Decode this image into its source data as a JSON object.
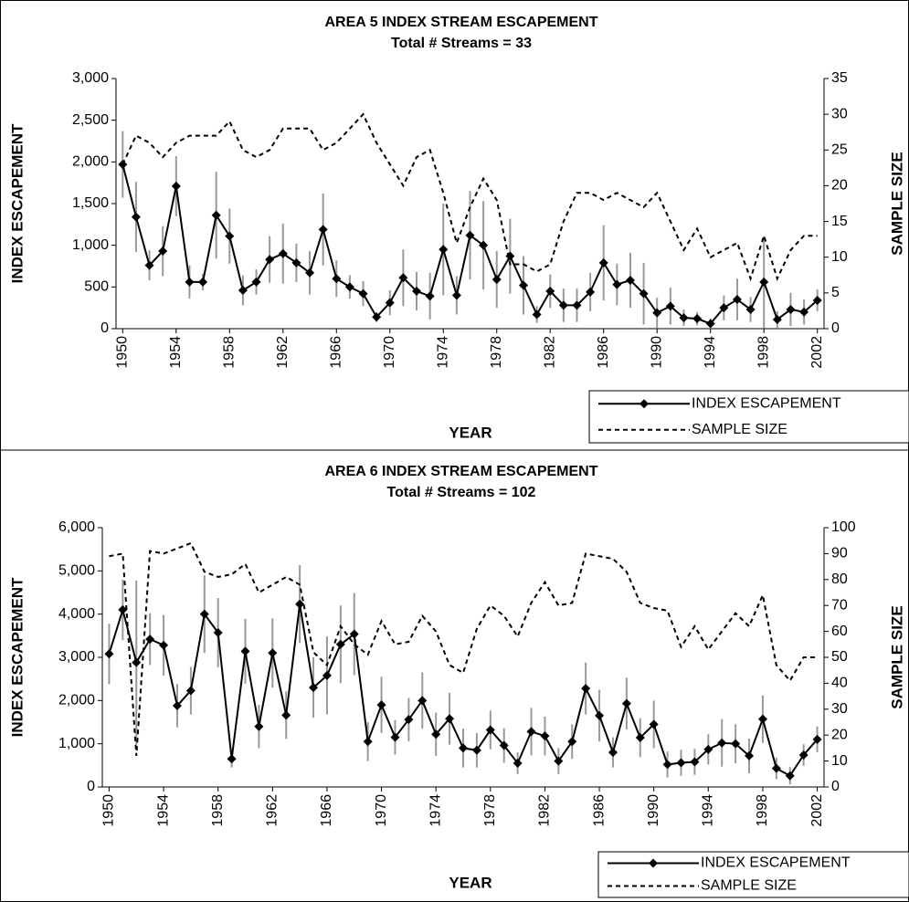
{
  "chart_data": [
    {
      "type": "line",
      "title": "AREA 5 INDEX STREAM ESCAPEMENT",
      "subtitle": "Total # Streams = 33",
      "xlabel": "YEAR",
      "ylabel": "INDEX ESCAPEMENT",
      "y2label": "SAMPLE SIZE",
      "x": [
        1950,
        1951,
        1952,
        1953,
        1954,
        1955,
        1956,
        1957,
        1958,
        1959,
        1960,
        1961,
        1962,
        1963,
        1964,
        1965,
        1966,
        1967,
        1968,
        1969,
        1970,
        1971,
        1972,
        1973,
        1974,
        1975,
        1976,
        1977,
        1978,
        1979,
        1980,
        1981,
        1982,
        1983,
        1984,
        1985,
        1986,
        1987,
        1988,
        1989,
        1990,
        1991,
        1992,
        1993,
        1994,
        1995,
        1996,
        1997,
        1998,
        1999,
        2000,
        2001,
        2002
      ],
      "xlim": [
        1949.5,
        2002.5
      ],
      "xticks": [
        1950,
        1954,
        1958,
        1962,
        1966,
        1970,
        1974,
        1978,
        1982,
        1986,
        1990,
        1994,
        1998,
        2002
      ],
      "ylim": [
        0,
        3000
      ],
      "yticks": [
        0,
        500,
        {
          "value": 1000,
          "label": "1,000"
        },
        {
          "value": 1500,
          "label": "1,500"
        },
        {
          "value": 2000,
          "label": "2,000"
        },
        {
          "value": 2500,
          "label": "2,500"
        },
        {
          "value": 3000,
          "label": "3,000"
        }
      ],
      "y2lim": [
        0,
        35
      ],
      "y2ticks": [
        0,
        5,
        10,
        15,
        20,
        25,
        30,
        35
      ],
      "legend": "lower right",
      "series": [
        {
          "name": "INDEX ESCAPEMENT",
          "color": "#000000",
          "error_color": "#999999",
          "values": [
            1970,
            1340,
            760,
            930,
            1710,
            560,
            560,
            1360,
            1110,
            460,
            560,
            830,
            900,
            790,
            670,
            1190,
            600,
            500,
            420,
            140,
            310,
            610,
            450,
            390,
            950,
            400,
            1120,
            1000,
            590,
            870,
            520,
            170,
            450,
            280,
            280,
            440,
            790,
            530,
            580,
            420,
            190,
            270,
            130,
            120,
            60,
            250,
            350,
            230,
            560,
            110,
            230,
            200,
            340
          ],
          "errors": [
            400,
            420,
            180,
            300,
            360,
            200,
            100,
            520,
            330,
            180,
            150,
            280,
            360,
            230,
            260,
            430,
            220,
            140,
            150,
            60,
            150,
            340,
            230,
            280,
            550,
            230,
            530,
            530,
            340,
            450,
            350,
            100,
            200,
            200,
            200,
            230,
            450,
            250,
            330,
            370,
            180,
            220,
            100,
            80,
            60,
            150,
            250,
            150,
            550,
            100,
            200,
            150,
            130
          ]
        },
        {
          "name": "SAMPLE SIZE",
          "color": "#000000",
          "dash": true,
          "axis": "y2",
          "values": [
            23,
            27,
            26,
            24,
            26,
            27,
            27,
            27,
            29,
            25,
            24,
            25,
            28,
            28,
            28,
            25,
            26,
            28,
            30,
            26,
            23,
            20,
            24,
            25,
            19,
            12,
            17,
            21,
            18,
            9,
            9,
            8,
            9,
            15,
            19,
            19,
            18,
            19,
            18,
            17,
            19,
            15,
            11,
            14,
            10,
            11,
            12,
            7,
            13,
            7,
            11,
            13,
            13
          ]
        }
      ]
    },
    {
      "type": "line",
      "title": "AREA 6 INDEX STREAM ESCAPEMENT",
      "subtitle": "Total # Streams = 102",
      "xlabel": "YEAR",
      "ylabel": "INDEX ESCAPEMENT",
      "y2label": "SAMPLE SIZE",
      "x": [
        1950,
        1951,
        1952,
        1953,
        1954,
        1955,
        1956,
        1957,
        1958,
        1959,
        1960,
        1961,
        1962,
        1963,
        1964,
        1965,
        1966,
        1967,
        1968,
        1969,
        1970,
        1971,
        1972,
        1973,
        1974,
        1975,
        1976,
        1977,
        1978,
        1979,
        1980,
        1981,
        1982,
        1983,
        1984,
        1985,
        1986,
        1987,
        1988,
        1989,
        1990,
        1991,
        1992,
        1993,
        1994,
        1995,
        1996,
        1997,
        1998,
        1999,
        2000,
        2001,
        2002
      ],
      "xlim": [
        1949.5,
        2002.5
      ],
      "xticks": [
        1950,
        1954,
        1958,
        1962,
        1966,
        1970,
        1974,
        1978,
        1982,
        1986,
        1990,
        1994,
        1998,
        2002
      ],
      "ylim": [
        0,
        6000
      ],
      "yticks": [
        0,
        {
          "value": 1000,
          "label": "1,000"
        },
        {
          "value": 2000,
          "label": "2,000"
        },
        {
          "value": 3000,
          "label": "3,000"
        },
        {
          "value": 4000,
          "label": "4,000"
        },
        {
          "value": 5000,
          "label": "5,000"
        },
        {
          "value": 6000,
          "label": "6,000"
        }
      ],
      "y2lim": [
        0,
        100
      ],
      "y2ticks": [
        0,
        10,
        20,
        30,
        40,
        50,
        60,
        70,
        80,
        90,
        100
      ],
      "legend": "lower right",
      "series": [
        {
          "name": "INDEX ESCAPEMENT",
          "color": "#000000",
          "error_color": "#999999",
          "values": [
            3080,
            4100,
            2880,
            3420,
            3280,
            1880,
            2230,
            4000,
            3570,
            650,
            3140,
            1400,
            3100,
            1660,
            4230,
            2300,
            2580,
            3300,
            3540,
            1050,
            1900,
            1150,
            1560,
            2000,
            1220,
            1580,
            900,
            850,
            1320,
            960,
            550,
            1280,
            1180,
            600,
            1050,
            2280,
            1650,
            800,
            1930,
            1140,
            1450,
            520,
            560,
            580,
            870,
            1020,
            1000,
            720,
            1570,
            430,
            260,
            740,
            1100
          ],
          "errors": [
            700,
            700,
            1900,
            600,
            700,
            500,
            550,
            900,
            800,
            200,
            750,
            500,
            800,
            550,
            900,
            700,
            900,
            900,
            950,
            450,
            650,
            400,
            500,
            650,
            500,
            600,
            450,
            400,
            450,
            400,
            250,
            550,
            450,
            300,
            400,
            600,
            600,
            350,
            600,
            450,
            550,
            300,
            300,
            300,
            350,
            550,
            450,
            400,
            550,
            250,
            200,
            250,
            300
          ]
        },
        {
          "name": "SAMPLE SIZE",
          "color": "#000000",
          "dash": true,
          "axis": "y2",
          "values": [
            89,
            90,
            12,
            91,
            90,
            92,
            94,
            83,
            81,
            82,
            86,
            75,
            78,
            81,
            78,
            52,
            47,
            62,
            55,
            51,
            64,
            55,
            56,
            66,
            60,
            47,
            44,
            61,
            70,
            66,
            58,
            71,
            79,
            70,
            71,
            90,
            89,
            88,
            83,
            71,
            69,
            68,
            54,
            62,
            53,
            60,
            67,
            62,
            74,
            47,
            41,
            50,
            50
          ]
        }
      ]
    }
  ]
}
